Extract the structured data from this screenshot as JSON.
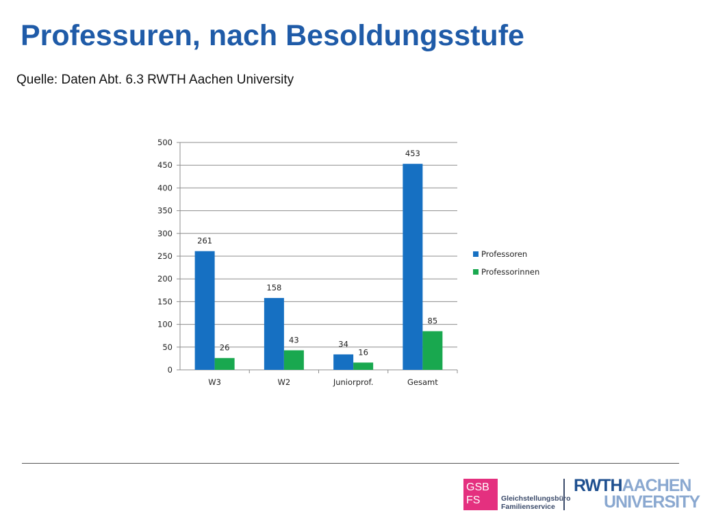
{
  "slide": {
    "title": "Professuren, nach Besoldungsstufe",
    "subtitle": "Quelle: Daten Abt. 6.3 RWTH Aachen University"
  },
  "footer": {
    "gsb_logo_line1": "GSB",
    "gsb_logo_line2": "FS",
    "gsb_name_line1": "Gleichstellungsbüro",
    "gsb_name_line2": "Familienservice",
    "rwth_part1": "RWTH",
    "rwth_part2": "AACHEN",
    "rwth_part3": "UNIVERSITY"
  },
  "chart_data": {
    "type": "bar",
    "categories": [
      "W3",
      "W2",
      "Juniorprof.",
      "Gesamt"
    ],
    "series": [
      {
        "name": "Professoren",
        "values": [
          261,
          158,
          34,
          453
        ],
        "color": "#1670c2"
      },
      {
        "name": "Professorinnen",
        "values": [
          26,
          43,
          16,
          85
        ],
        "color": "#19a84f"
      }
    ],
    "ylim": [
      0,
      500
    ],
    "yticks": [
      0,
      50,
      100,
      150,
      200,
      250,
      300,
      350,
      400,
      450,
      500
    ],
    "grid": true,
    "legend_position": "right",
    "data_labels": true
  }
}
